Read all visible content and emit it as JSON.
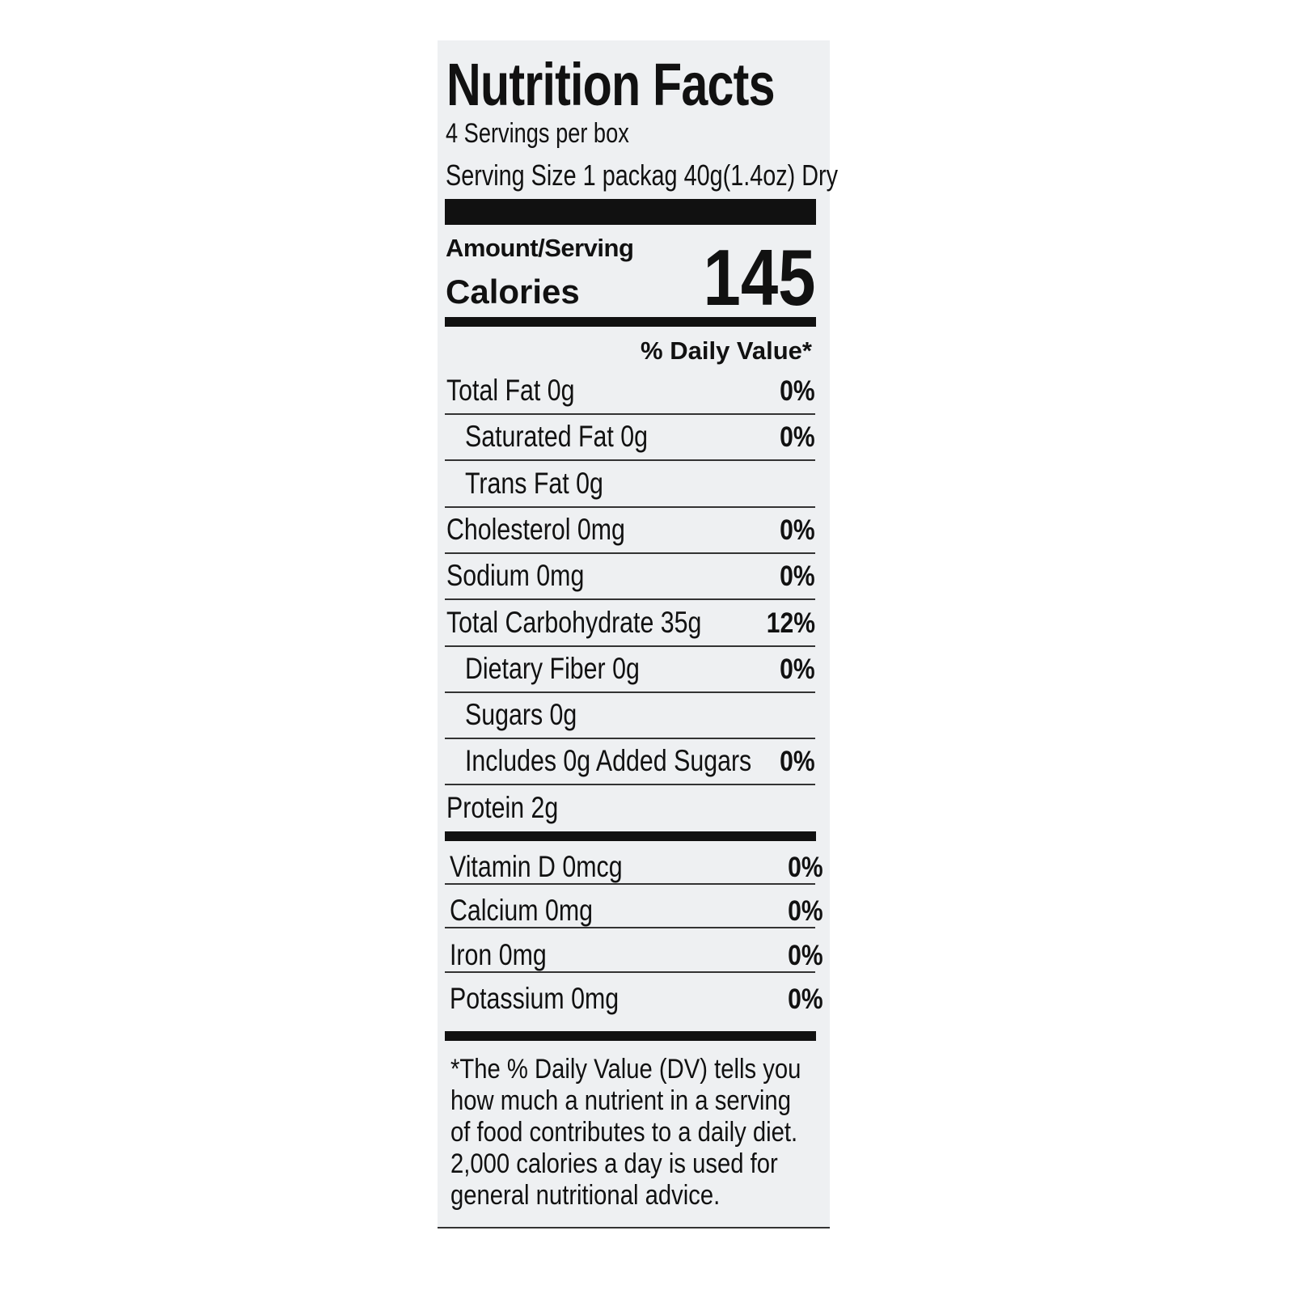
{
  "title": "Nutrition Facts",
  "servings_per_container": "4 Servings per box",
  "serving_size": "Serving Size 1 packag 40g(1.4oz) Dry",
  "amount_per_serving_label": "Amount/Serving",
  "calories_label": "Calories",
  "calories_value": "145",
  "daily_value_header": "% Daily Value*",
  "nutrients": [
    {
      "label": "Total Fat 0g",
      "dv": "0%",
      "indent": false
    },
    {
      "label": "Saturated Fat 0g",
      "dv": "0%",
      "indent": true
    },
    {
      "label": "Trans Fat 0g",
      "dv": "",
      "indent": true
    },
    {
      "label": "Cholesterol 0mg",
      "dv": "0%",
      "indent": false
    },
    {
      "label": "Sodium 0mg",
      "dv": "0%",
      "indent": false
    },
    {
      "label": "Total Carbohydrate 35g",
      "dv": "12%",
      "indent": false
    },
    {
      "label": "Dietary Fiber 0g",
      "dv": "0%",
      "indent": true
    },
    {
      "label": "Sugars 0g",
      "dv": "",
      "indent": true
    },
    {
      "label": "Includes 0g Added Sugars",
      "dv": "0%",
      "indent": true
    },
    {
      "label": "Protein 2g",
      "dv": "",
      "indent": false
    }
  ],
  "vitamins": [
    {
      "label": "Vitamin D 0mcg",
      "dv": "0%"
    },
    {
      "label": "Calcium 0mg",
      "dv": "0%"
    },
    {
      "label": "Iron 0mg",
      "dv": "0%"
    },
    {
      "label": "Potassium 0mg",
      "dv": "0%"
    }
  ],
  "footnote_lines": [
    "*The % Daily Value (DV) tells you",
    "how much a nutrient in a serving",
    "of food contributes to a daily diet.",
    "2,000 calories a day is used for",
    "general nutritional advice."
  ]
}
